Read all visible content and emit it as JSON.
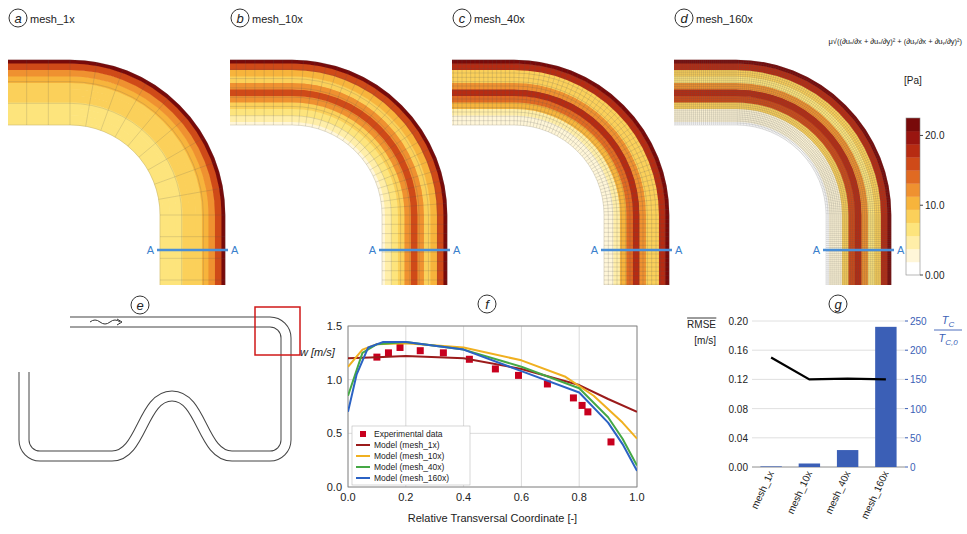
{
  "chart_data": [
    {
      "type": "contour",
      "panel_label": "a",
      "title": "mesh_1x",
      "section_labels": [
        "A",
        "A"
      ],
      "r": [
        0,
        0.1,
        0.2,
        0.3,
        0.4,
        0.5,
        0.6,
        0.7,
        0.8,
        0.9,
        1
      ],
      "values": [
        6,
        6,
        7,
        7,
        8,
        8,
        9,
        10,
        12,
        16,
        22
      ]
    },
    {
      "type": "contour",
      "panel_label": "b",
      "title": "mesh_10x",
      "section_labels": [
        "A",
        "A"
      ],
      "r": [
        0,
        0.1,
        0.2,
        0.3,
        0.4,
        0.5,
        0.6,
        0.7,
        0.8,
        0.9,
        1
      ],
      "values": [
        3,
        4,
        6,
        9,
        13,
        15,
        12,
        9,
        10,
        16,
        23
      ]
    },
    {
      "type": "contour",
      "panel_label": "c",
      "title": "mesh_40x",
      "section_labels": [
        "A",
        "A"
      ],
      "r": [
        0,
        0.1,
        0.2,
        0.3,
        0.4,
        0.5,
        0.6,
        0.7,
        0.8,
        0.9,
        1
      ],
      "values": [
        2,
        3,
        5,
        10,
        14,
        17,
        13,
        8,
        9,
        17,
        24
      ]
    },
    {
      "type": "contour",
      "panel_label": "d",
      "title": "mesh_160x",
      "section_labels": [
        "A",
        "A"
      ],
      "r": [
        0,
        0.1,
        0.2,
        0.3,
        0.4,
        0.5,
        0.6,
        0.7,
        0.8,
        0.9,
        1
      ],
      "values": [
        1,
        2,
        3,
        9,
        15,
        18,
        12,
        6,
        8,
        18,
        25
      ]
    },
    {
      "type": "line",
      "panel_label": "f",
      "xlabel": "Relative Transversal Coordinate [-]",
      "ylabel": "w [m/s]",
      "xlim": [
        0,
        1
      ],
      "ylim": [
        0,
        1.5
      ],
      "xticks": [
        {
          "value": 0,
          "label": "0.0"
        },
        {
          "value": 0.2,
          "label": "0.2"
        },
        {
          "value": 0.4,
          "label": "0.4"
        },
        {
          "value": 0.6,
          "label": "0.6"
        },
        {
          "value": 0.8,
          "label": "0.8"
        },
        {
          "value": 1,
          "label": "1.0"
        }
      ],
      "yticks": [
        {
          "value": 0,
          "label": "0.0"
        },
        {
          "value": 0.5,
          "label": "0.5"
        },
        {
          "value": 1,
          "label": "1.0"
        },
        {
          "value": 1.5,
          "label": "1.5"
        }
      ],
      "grid": true,
      "legend": "lower left",
      "series": [
        {
          "name": "Experimental data",
          "type": "scatter",
          "marker": "square",
          "color": "#c8001e",
          "x": [
            0.1,
            0.14,
            0.18,
            0.25,
            0.33,
            0.42,
            0.51,
            0.59,
            0.69,
            0.78,
            0.81,
            0.83,
            0.91
          ],
          "values": [
            1.21,
            1.25,
            1.3,
            1.27,
            1.25,
            1.19,
            1.1,
            1.04,
            0.96,
            0.83,
            0.76,
            0.7,
            0.42
          ]
        },
        {
          "name": "Model (mesh_1x)",
          "type": "line",
          "color": "#9b1b1b",
          "x": [
            0,
            0.1,
            0.2,
            0.4,
            0.6,
            0.8,
            0.9,
            1
          ],
          "values": [
            1.2,
            1.21,
            1.22,
            1.2,
            1.1,
            0.95,
            0.82,
            0.7
          ]
        },
        {
          "name": "Model (mesh_10x)",
          "type": "line",
          "color": "#f0b020",
          "x": [
            0,
            0.05,
            0.1,
            0.2,
            0.4,
            0.6,
            0.75,
            0.85,
            0.95,
            1
          ],
          "values": [
            1.12,
            1.28,
            1.33,
            1.34,
            1.3,
            1.18,
            1.03,
            0.85,
            0.6,
            0.45
          ]
        },
        {
          "name": "Model (mesh_40x)",
          "type": "line",
          "color": "#45a845",
          "x": [
            0,
            0.05,
            0.1,
            0.2,
            0.4,
            0.6,
            0.8,
            0.9,
            0.95,
            1
          ],
          "values": [
            0.85,
            1.25,
            1.33,
            1.35,
            1.28,
            1.12,
            0.92,
            0.65,
            0.45,
            0.2
          ]
        },
        {
          "name": "Model (mesh_160x)",
          "type": "line",
          "color": "#2b62c4",
          "x": [
            0,
            0.03,
            0.07,
            0.12,
            0.2,
            0.4,
            0.6,
            0.8,
            0.9,
            0.95,
            1
          ],
          "values": [
            0.7,
            1.05,
            1.3,
            1.35,
            1.35,
            1.28,
            1.08,
            0.88,
            0.6,
            0.4,
            0.15
          ]
        }
      ]
    },
    {
      "type": "bar",
      "panel_label": "g",
      "categories": [
        "mesh_1x",
        "mesh_10x",
        "mesh_40x",
        "mesh_160x"
      ],
      "ylabel": [
        "RMSE",
        "[m/s]"
      ],
      "y2label": {
        "numerator": [
          "T",
          "C"
        ],
        "denominator": [
          "T",
          "C,0"
        ]
      },
      "ylim": [
        0,
        0.2
      ],
      "yticks": [
        {
          "value": 0,
          "label": "0.00"
        },
        {
          "value": 0.04,
          "label": "0.04"
        },
        {
          "value": 0.08,
          "label": "0.08"
        },
        {
          "value": 0.12,
          "label": "0.12"
        },
        {
          "value": 0.16,
          "label": "0.16"
        },
        {
          "value": 0.2,
          "label": "0.20"
        }
      ],
      "y2lim": [
        0,
        250
      ],
      "y2ticks": [
        0,
        50,
        100,
        150,
        200,
        250
      ],
      "grid": true,
      "series": [
        {
          "type": "bar",
          "axis": "y2",
          "color": "#3b5fb6",
          "values": [
            1,
            6,
            29,
            240
          ]
        },
        {
          "type": "line",
          "axis": "y",
          "color": "#000000",
          "values": [
            0.15,
            0.12,
            0.121,
            0.12
          ]
        }
      ]
    }
  ],
  "colorbar": {
    "formula": "μ√((∂uₓ/∂x + ∂uₓ/∂y)² + (∂uᵧ/∂x + ∂uᵧ/∂y)²)",
    "label": "[Pa]",
    "range": [
      0,
      22.5
    ],
    "ticks": [
      {
        "value": 0,
        "label": "0.00"
      },
      {
        "value": 10,
        "label": "10.0"
      },
      {
        "value": 20,
        "label": "20.0"
      }
    ],
    "colors": [
      "#ffffff",
      "#fff6d8",
      "#ffeea8",
      "#fde47c",
      "#fbd05a",
      "#f7b43c",
      "#ef9130",
      "#e06a22",
      "#cf4a18",
      "#b72b12",
      "#991510",
      "#780a0a"
    ]
  },
  "diagram": {
    "panel_label": "e"
  }
}
